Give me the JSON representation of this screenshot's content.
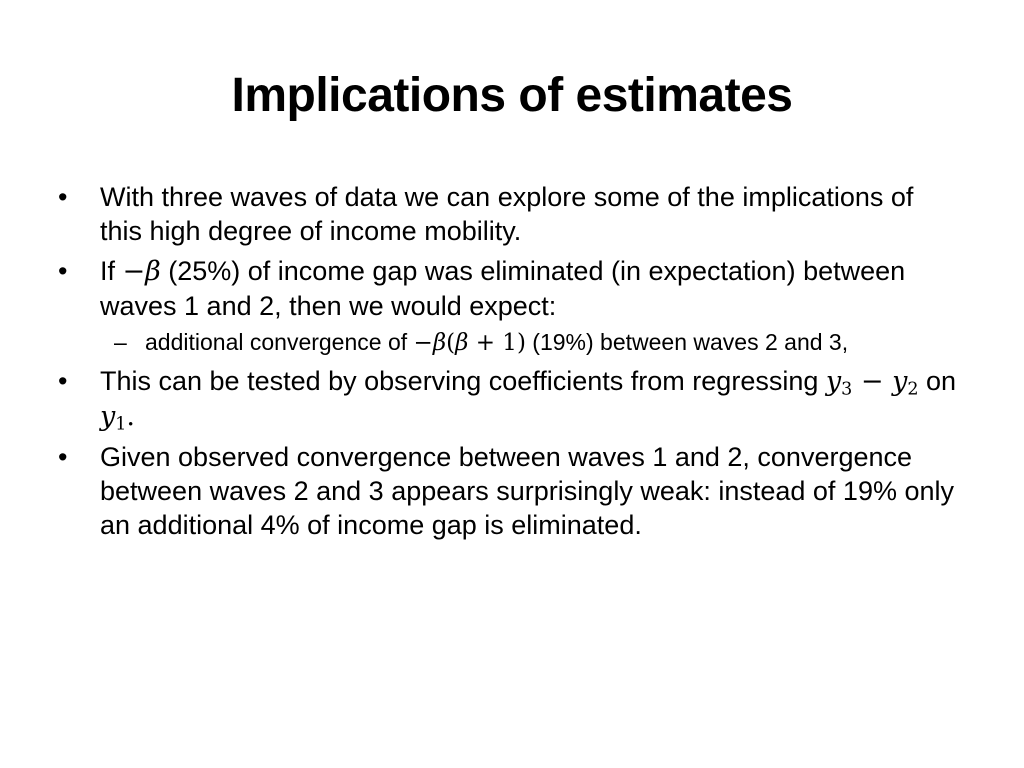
{
  "slide": {
    "title": "Implications of estimates",
    "bullet_marker": "•",
    "sub_marker": "–",
    "bullets": [
      {
        "text": "With three waves of data we can explore some of the implications of this high degree of income mobility."
      },
      {
        "pre": "If ",
        "minus": "−",
        "beta": "β",
        "post": " (25%) of income gap was eliminated (in expectation) between waves 1 and 2, then we would expect:"
      },
      {
        "pre": "This can be tested by observing coefficients from regressing ",
        "y": "y",
        "sub3": "3",
        "minus": " − ",
        "sub2": "2",
        "on": " on ",
        "sub1": "1",
        "end": "."
      },
      {
        "text": "Given observed convergence between waves 1 and 2, convergence between waves 2 and 3 appears surprisingly weak: instead of 19% only an additional 4% of income gap is eliminated."
      }
    ],
    "sub_bullet": {
      "pre": "additional convergence of ",
      "minus": "−",
      "beta": "β",
      "open": "(",
      "plus": " + ",
      "one": "1",
      "close": ")",
      "post": " (19%) between waves 2 and 3,"
    }
  }
}
